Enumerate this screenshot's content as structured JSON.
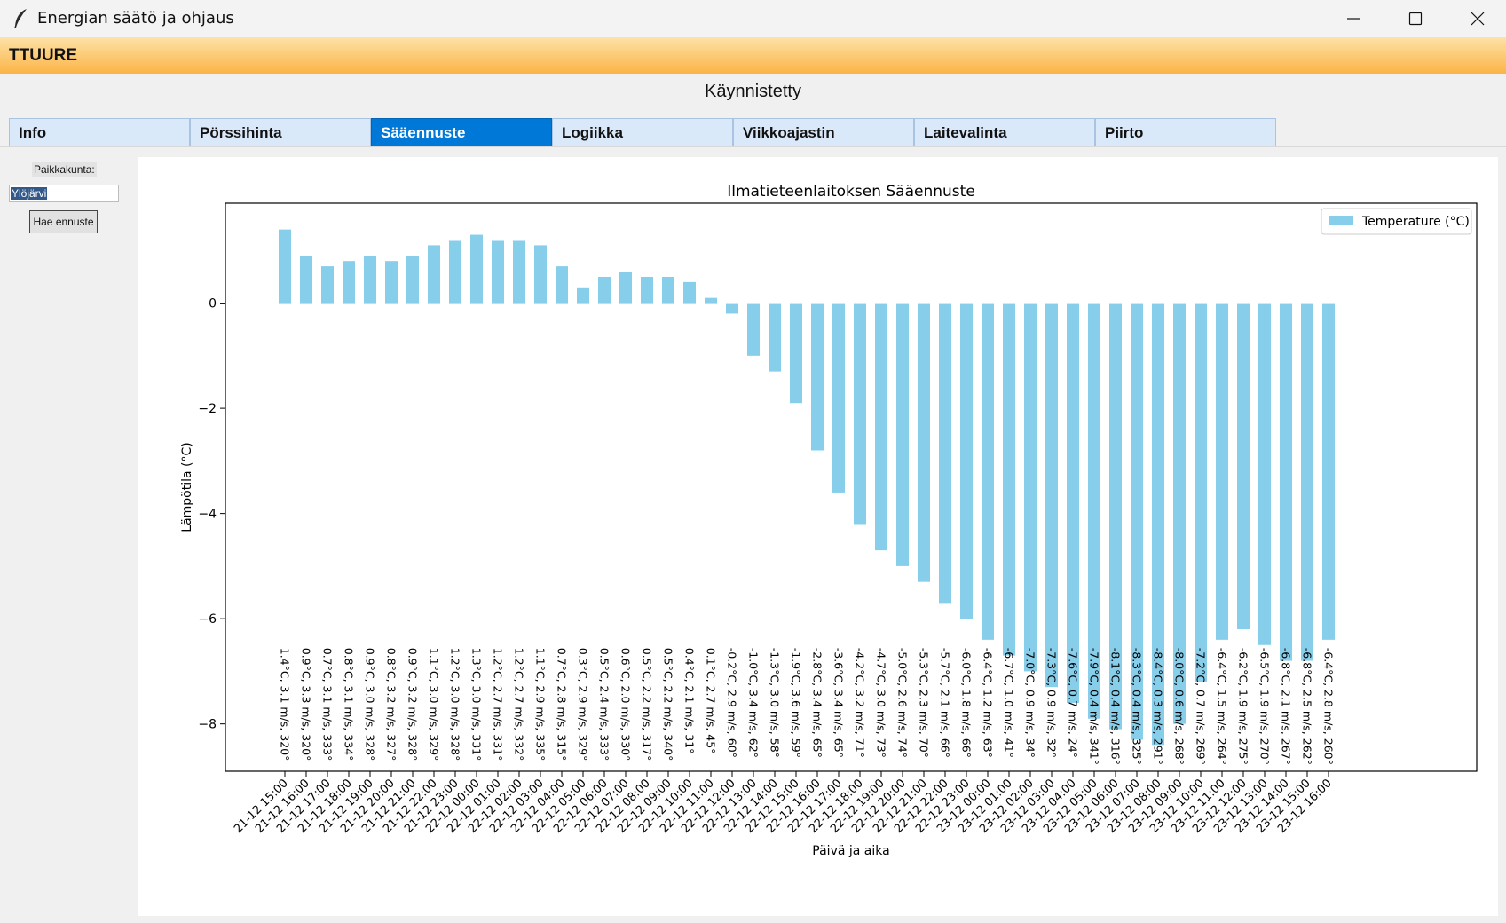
{
  "window": {
    "title": "Energian säätö ja ohjaus"
  },
  "banner": {
    "brand": "TTUURE"
  },
  "status_text": "Käynnistetty",
  "tabs": [
    {
      "label": "Info"
    },
    {
      "label": "Pörssihinta"
    },
    {
      "label": "Sääennuste",
      "active": true
    },
    {
      "label": "Logiikka"
    },
    {
      "label": "Viikkoajastin"
    },
    {
      "label": "Laitevalinta"
    },
    {
      "label": "Piirto"
    }
  ],
  "sidebar": {
    "city_label": "Paikkakunta:",
    "city_value": "Ylöjärvi",
    "fetch_button": "Hae ennuste"
  },
  "colors": {
    "bar": "#87ceeb",
    "accent": "#0078d7",
    "banner_top": "#fde2a8",
    "banner_bottom": "#fbb445"
  },
  "chart_data": {
    "type": "bar",
    "title": "Ilmatieteenlaitoksen Sääennuste",
    "xlabel": "Päivä ja aika",
    "ylabel": "Lämpötila (°C)",
    "legend": "Temperature (°C)",
    "legend_position": "top-right",
    "ylim": [
      -8.9,
      1.9
    ],
    "yticks": [
      {
        "v": 0,
        "l": "0"
      },
      {
        "v": -2,
        "l": "−2"
      },
      {
        "v": -4,
        "l": "−4"
      },
      {
        "v": -6,
        "l": "−6"
      },
      {
        "v": -8,
        "l": "−8"
      }
    ],
    "categories": [
      "21-12 15:00",
      "21-12 16:00",
      "21-12 17:00",
      "21-12 18:00",
      "21-12 19:00",
      "21-12 20:00",
      "21-12 21:00",
      "21-12 22:00",
      "21-12 23:00",
      "22-12 00:00",
      "22-12 01:00",
      "22-12 02:00",
      "22-12 03:00",
      "22-12 04:00",
      "22-12 05:00",
      "22-12 06:00",
      "22-12 07:00",
      "22-12 08:00",
      "22-12 09:00",
      "22-12 10:00",
      "22-12 11:00",
      "22-12 12:00",
      "22-12 13:00",
      "22-12 14:00",
      "22-12 15:00",
      "22-12 16:00",
      "22-12 17:00",
      "22-12 18:00",
      "22-12 19:00",
      "22-12 20:00",
      "22-12 21:00",
      "22-12 22:00",
      "22-12 23:00",
      "23-12 00:00",
      "23-12 01:00",
      "23-12 02:00",
      "23-12 03:00",
      "23-12 04:00",
      "23-12 05:00",
      "23-12 06:00",
      "23-12 07:00",
      "23-12 08:00",
      "23-12 09:00",
      "23-12 10:00",
      "23-12 11:00",
      "23-12 12:00",
      "23-12 13:00",
      "23-12 14:00",
      "23-12 15:00",
      "23-12 16:00"
    ],
    "values": [
      1.4,
      0.9,
      0.7,
      0.8,
      0.9,
      0.8,
      0.9,
      1.1,
      1.2,
      1.3,
      1.2,
      1.2,
      1.1,
      0.7,
      0.3,
      0.5,
      0.6,
      0.5,
      0.5,
      0.4,
      0.1,
      -0.2,
      -1.0,
      -1.3,
      -1.9,
      -2.8,
      -3.6,
      -4.2,
      -4.7,
      -5.0,
      -5.3,
      -5.7,
      -6.0,
      -6.4,
      -6.7,
      -7.0,
      -7.3,
      -7.6,
      -7.9,
      -8.1,
      -8.3,
      -8.4,
      -8.0,
      -7.2,
      -6.4,
      -6.2,
      -6.5,
      -6.8,
      -6.8,
      -6.4
    ],
    "annotations": [
      "1.4°C, 3.1 m/s, 320°",
      "0.9°C, 3.3 m/s, 320°",
      "0.7°C, 3.1 m/s, 333°",
      "0.8°C, 3.1 m/s, 334°",
      "0.9°C, 3.0 m/s, 328°",
      "0.8°C, 3.2 m/s, 327°",
      "0.9°C, 3.2 m/s, 328°",
      "1.1°C, 3.0 m/s, 329°",
      "1.2°C, 3.0 m/s, 328°",
      "1.3°C, 3.0 m/s, 331°",
      "1.2°C, 2.7 m/s, 331°",
      "1.2°C, 2.7 m/s, 332°",
      "1.1°C, 2.9 m/s, 335°",
      "0.7°C, 2.8 m/s, 315°",
      "0.3°C, 2.9 m/s, 329°",
      "0.5°C, 2.4 m/s, 333°",
      "0.6°C, 2.0 m/s, 330°",
      "0.5°C, 2.2 m/s, 317°",
      "0.5°C, 2.2 m/s, 340°",
      "0.4°C, 2.1 m/s, 31°",
      "0.1°C, 2.7 m/s, 45°",
      "-0.2°C, 2.9 m/s, 60°",
      "-1.0°C, 3.4 m/s, 62°",
      "-1.3°C, 3.0 m/s, 58°",
      "-1.9°C, 3.6 m/s, 59°",
      "-2.8°C, 3.4 m/s, 65°",
      "-3.6°C, 3.4 m/s, 65°",
      "-4.2°C, 3.2 m/s, 71°",
      "-4.7°C, 3.0 m/s, 73°",
      "-5.0°C, 2.6 m/s, 74°",
      "-5.3°C, 2.3 m/s, 70°",
      "-5.7°C, 2.1 m/s, 66°",
      "-6.0°C, 1.8 m/s, 66°",
      "-6.4°C, 1.2 m/s, 63°",
      "-6.7°C, 1.0 m/s, 41°",
      "-7.0°C, 0.9 m/s, 34°",
      "-7.3°C, 0.9 m/s, 32°",
      "-7.6°C, 0.7 m/s, 24°",
      "-7.9°C, 0.4 m/s, 341°",
      "-8.1°C, 0.4 m/s, 316°",
      "-8.3°C, 0.4 m/s, 325°",
      "-8.4°C, 0.3 m/s, 291°",
      "-8.0°C, 0.6 m/s, 268°",
      "-7.2°C, 0.7 m/s, 269°",
      "-6.4°C, 1.5 m/s, 264°",
      "-6.2°C, 1.9 m/s, 275°",
      "-6.5°C, 1.9 m/s, 270°",
      "-6.8°C, 2.1 m/s, 267°",
      "-6.8°C, 2.5 m/s, 262°",
      "-6.4°C, 2.8 m/s, 260°"
    ]
  }
}
